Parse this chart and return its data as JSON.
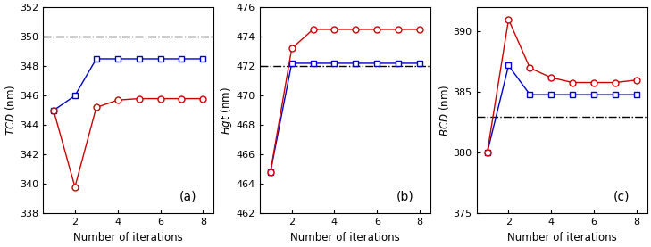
{
  "x": [
    1,
    2,
    3,
    4,
    5,
    6,
    7,
    8
  ],
  "panel_a": {
    "blue_sq": [
      345.0,
      346.0,
      348.5,
      348.5,
      348.5,
      348.5,
      348.5,
      348.5
    ],
    "red_circ": [
      345.0,
      339.8,
      345.2,
      345.7,
      345.8,
      345.8,
      345.8,
      345.8
    ],
    "hline": 350.0,
    "ylim": [
      338,
      352
    ],
    "yticks": [
      338,
      340,
      342,
      344,
      346,
      348,
      350,
      352
    ],
    "ylabel": "$\\it{TCD}$ (nm)",
    "label": "(a)"
  },
  "panel_b": {
    "blue_sq": [
      464.8,
      472.2,
      472.2,
      472.2,
      472.2,
      472.2,
      472.2,
      472.2
    ],
    "red_circ": [
      464.8,
      473.2,
      474.5,
      474.5,
      474.5,
      474.5,
      474.5,
      474.5
    ],
    "hline": 472.0,
    "ylim": [
      462,
      476
    ],
    "yticks": [
      462,
      464,
      466,
      468,
      470,
      472,
      474,
      476
    ],
    "ylabel": "$\\it{Hgt}$ (nm)",
    "label": "(b)"
  },
  "panel_c": {
    "blue_sq": [
      380.0,
      387.2,
      384.8,
      384.8,
      384.8,
      384.8,
      384.8,
      384.8
    ],
    "red_circ": [
      380.0,
      391.0,
      387.0,
      386.2,
      385.8,
      385.8,
      385.8,
      386.0
    ],
    "hline": 383.0,
    "ylim": [
      375,
      392
    ],
    "yticks": [
      375,
      380,
      385,
      390
    ],
    "ylabel": "$\\it{BCD}$ (nm)",
    "label": "(c)"
  },
  "xlabel": "Number of iterations",
  "red_color": "#cc0000",
  "blue_color": "#0000cc",
  "hline_color": "#000000",
  "marker_size": 5,
  "linewidth": 1.0
}
